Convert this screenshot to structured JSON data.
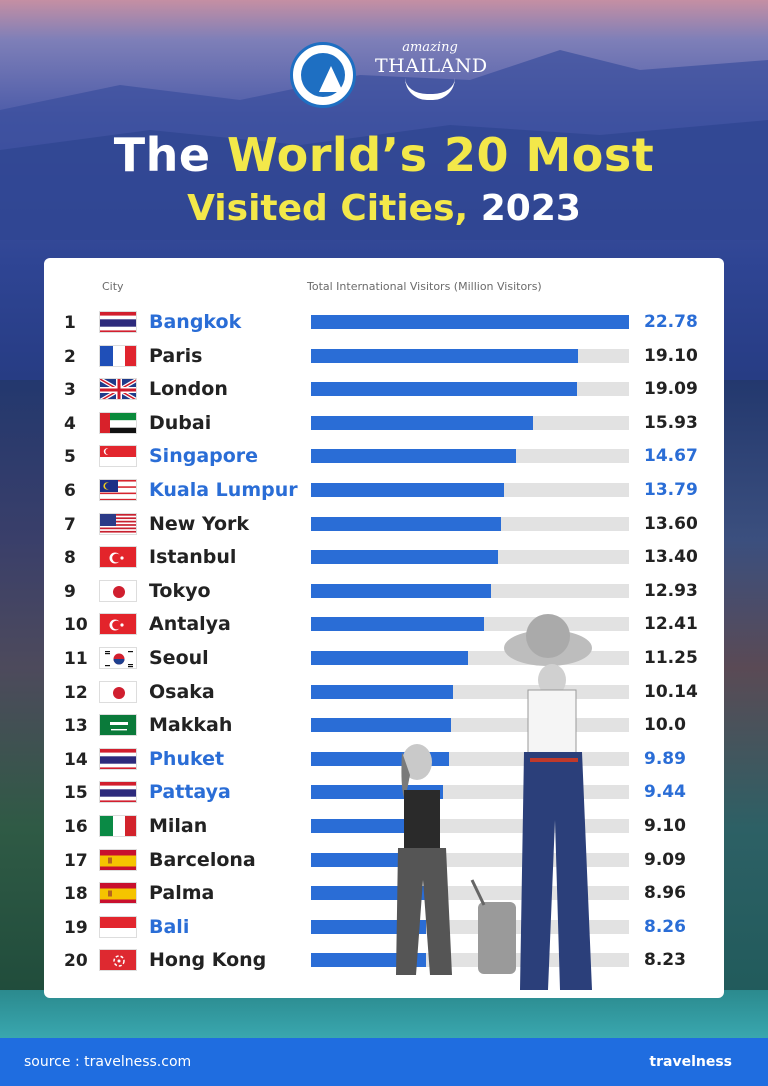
{
  "title": {
    "line1_a": "The",
    "line1_b": "World’s 20 Most",
    "line2_a": "Visited Cities,",
    "line2_b": "2023"
  },
  "logos": {
    "amazing_small": "amazing",
    "amazing_big": "THAILAND"
  },
  "header": {
    "city_label": "City",
    "total_label": "Total International Visitors (Million Visitors)"
  },
  "footer": {
    "source": "source : travelness.com",
    "brand": "travelness"
  },
  "colors": {
    "bar": "#2a6dd6",
    "track": "#e2e2e2",
    "thai_highlight": "#2a6dd6",
    "title_highlight": "#f3e84a",
    "footer": "#1f6de0"
  },
  "chart_data": {
    "type": "bar",
    "orientation": "horizontal",
    "xlim": [
      0,
      22.78
    ],
    "rows": [
      {
        "rank": "1",
        "city": "Bangkok",
        "flag": "thailand-flag",
        "value": 22.78,
        "value_label": "22.78",
        "highlight": true
      },
      {
        "rank": "2",
        "city": "Paris",
        "flag": "france-flag",
        "value": 19.1,
        "value_label": "19.10",
        "highlight": false
      },
      {
        "rank": "3",
        "city": "London",
        "flag": "uk-flag",
        "value": 19.09,
        "value_label": "19.09",
        "highlight": false
      },
      {
        "rank": "4",
        "city": "Dubai",
        "flag": "uae-flag",
        "value": 15.93,
        "value_label": "15.93",
        "highlight": false
      },
      {
        "rank": "5",
        "city": "Singapore",
        "flag": "singapore-flag",
        "value": 14.67,
        "value_label": "14.67",
        "highlight": true
      },
      {
        "rank": "6",
        "city": "Kuala Lumpur",
        "flag": "malaysia-flag",
        "value": 13.79,
        "value_label": "13.79",
        "highlight": true
      },
      {
        "rank": "7",
        "city": "New York",
        "flag": "usa-flag",
        "value": 13.6,
        "value_label": "13.60",
        "highlight": false
      },
      {
        "rank": "8",
        "city": "Istanbul",
        "flag": "turkey-flag",
        "value": 13.4,
        "value_label": "13.40",
        "highlight": false
      },
      {
        "rank": "9",
        "city": "Tokyo",
        "flag": "japan-flag",
        "value": 12.93,
        "value_label": "12.93",
        "highlight": false
      },
      {
        "rank": "10",
        "city": "Antalya",
        "flag": "turkey-flag",
        "value": 12.41,
        "value_label": "12.41",
        "highlight": false
      },
      {
        "rank": "11",
        "city": "Seoul",
        "flag": "korea-flag",
        "value": 11.25,
        "value_label": "11.25",
        "highlight": false
      },
      {
        "rank": "12",
        "city": "Osaka",
        "flag": "japan-flag",
        "value": 10.14,
        "value_label": "10.14",
        "highlight": false
      },
      {
        "rank": "13",
        "city": "Makkah",
        "flag": "saudi-flag",
        "value": 10.0,
        "value_label": "10.0",
        "highlight": false
      },
      {
        "rank": "14",
        "city": "Phuket",
        "flag": "thailand-flag",
        "value": 9.89,
        "value_label": "9.89",
        "highlight": true
      },
      {
        "rank": "15",
        "city": "Pattaya",
        "flag": "thailand-flag",
        "value": 9.44,
        "value_label": "9.44",
        "highlight": true
      },
      {
        "rank": "16",
        "city": "Milan",
        "flag": "italy-flag",
        "value": 9.1,
        "value_label": "9.10",
        "highlight": false
      },
      {
        "rank": "17",
        "city": "Barcelona",
        "flag": "spain-flag",
        "value": 9.09,
        "value_label": "9.09",
        "highlight": false
      },
      {
        "rank": "18",
        "city": "Palma",
        "flag": "spain-flag",
        "value": 8.96,
        "value_label": "8.96",
        "highlight": false
      },
      {
        "rank": "19",
        "city": "Bali",
        "flag": "indonesia-flag",
        "value": 8.26,
        "value_label": "8.26",
        "highlight": true
      },
      {
        "rank": "20",
        "city": "Hong Kong",
        "flag": "hongkong-flag",
        "value": 8.23,
        "value_label": "8.23",
        "highlight": false
      }
    ]
  }
}
